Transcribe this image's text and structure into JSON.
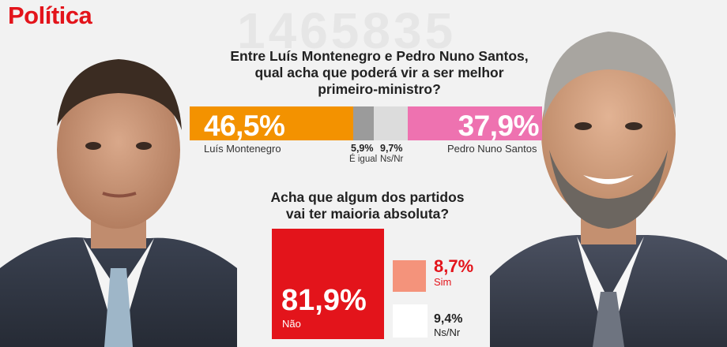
{
  "header": {
    "section": "Política",
    "watermark": "1465835"
  },
  "colors": {
    "red": "#e3141b",
    "orange": "#f39200",
    "pink": "#ee72b0",
    "grey_dark": "#9b9b9b",
    "grey_light": "#dcdcdc",
    "salmon": "#f4937b",
    "white": "#ffffff"
  },
  "chart_data": [
    {
      "type": "bar",
      "orientation": "stacked-horizontal",
      "title": "Entre Luís Montenegro e Pedro Nuno Santos, qual acha que poderá vir a ser melhor primeiro-ministro?",
      "title_lines": [
        "Entre Luís Montenegro e Pedro Nuno Santos,",
        "qual acha que poderá vir a ser melhor",
        "primeiro-ministro?"
      ],
      "categories": [
        "Luís Montenegro",
        "É igual",
        "Ns/Nr",
        "Pedro Nuno Santos"
      ],
      "values": [
        46.5,
        5.9,
        9.7,
        37.9
      ],
      "labels": [
        "46,5%",
        "5,9%",
        "9,7%",
        "37,9%"
      ],
      "unit": "%"
    },
    {
      "type": "bar",
      "orientation": "boxes",
      "title": "Acha que algum dos partidos vai ter maioria absoluta?",
      "title_lines": [
        "Acha que algum dos partidos",
        "vai ter maioria absoluta?"
      ],
      "categories": [
        "Não",
        "Sim",
        "Ns/Nr"
      ],
      "values": [
        81.9,
        8.7,
        9.4
      ],
      "labels": [
        "81,9%",
        "8,7%",
        "9,4%"
      ],
      "unit": "%"
    }
  ]
}
